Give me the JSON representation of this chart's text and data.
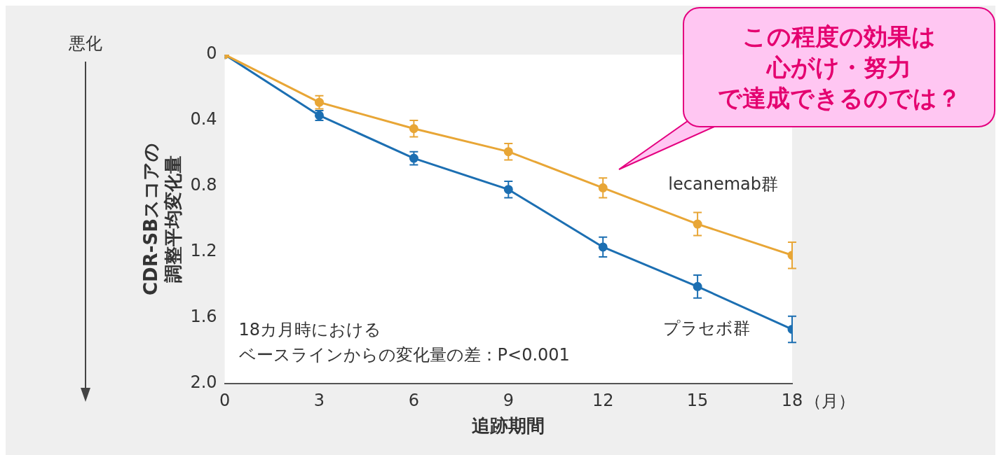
{
  "chart_data": {
    "type": "line",
    "xlabel": "追跡期間",
    "ylabel": "CDR-SBスコアの調整平均変化量",
    "x": [
      0,
      3,
      6,
      9,
      12,
      15,
      18
    ],
    "series": [
      {
        "name": "lecanemab群",
        "color": "#e8a636",
        "values": [
          0,
          0.29,
          0.45,
          0.59,
          0.81,
          1.03,
          1.22
        ],
        "errors": [
          null,
          0.04,
          0.05,
          0.05,
          0.06,
          0.07,
          0.08
        ]
      },
      {
        "name": "プラセボ群",
        "color": "#1c6fb2",
        "values": [
          0,
          0.37,
          0.63,
          0.82,
          1.17,
          1.41,
          1.67
        ],
        "errors": [
          null,
          0.03,
          0.04,
          0.05,
          0.06,
          0.07,
          0.08
        ]
      }
    ],
    "xlim": [
      0,
      18
    ],
    "xticks": [
      0,
      3,
      6,
      9,
      12,
      15,
      18
    ],
    "ylim": [
      2,
      0
    ],
    "yticks": [
      0,
      0.4,
      0.8,
      1.2,
      1.6,
      {
        "value": 2,
        "label": "2.0"
      }
    ],
    "grid": false,
    "legend": false,
    "marker": "circle",
    "line_style": "solid",
    "annotations": [
      "悪化",
      "18カ月時におけるベースラインからの変化量の差：P<0.001",
      "（月）",
      "この程度の効果は心がけ・努力で達成できるのでは？"
    ]
  }
}
